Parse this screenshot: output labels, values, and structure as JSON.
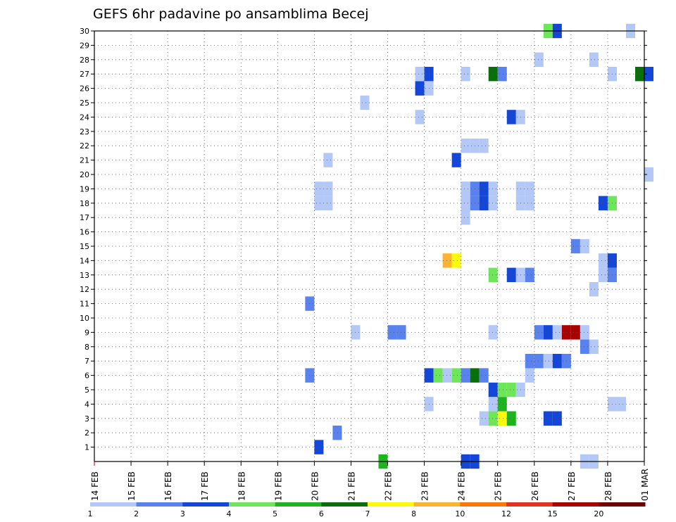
{
  "chart_data": {
    "type": "heatmap",
    "title": "GEFS 6hr padavine po ansamblima Becej",
    "xlabel": "",
    "ylabel": "",
    "x_axis": {
      "start": "14 FEB 00Z",
      "end": "01 MAR 00Z",
      "step_hours": 6,
      "tick_labels": [
        "14 FEB",
        "15 FEB",
        "16 FEB",
        "17 FEB",
        "18 FEB",
        "19 FEB",
        "20 FEB",
        "21 FEB",
        "22 FEB",
        "23 FEB",
        "24 FEB",
        "25 FEB",
        "26 FEB",
        "27 FEB",
        "28 FEB",
        "01 MAR"
      ]
    },
    "y_axis": {
      "ylim": [
        0,
        30
      ],
      "tick_labels": [
        "1",
        "2",
        "3",
        "4",
        "5",
        "6",
        "7",
        "8",
        "9",
        "10",
        "11",
        "12",
        "13",
        "14",
        "15",
        "16",
        "17",
        "18",
        "19",
        "20",
        "21",
        "22",
        "23",
        "24",
        "25",
        "26",
        "27",
        "28",
        "29",
        "30"
      ]
    },
    "grid": true,
    "legend": {
      "placement": "bottom",
      "tick_labels": [
        "1",
        "2",
        "3",
        "4",
        "5",
        "6",
        "7",
        "8",
        "10",
        "12",
        "15",
        "20"
      ],
      "colors": [
        "#b4c8f8",
        "#5a82ee",
        "#1446d8",
        "#6ee65a",
        "#1eb41e",
        "#0a6e0a",
        "#fafa0a",
        "#fab432",
        "#fa780a",
        "#e6321e",
        "#aa0000",
        "#6e0000"
      ]
    },
    "level_colors": [
      "#b4c8f8",
      "#5a82ee",
      "#1446d8",
      "#6ee65a",
      "#1eb41e",
      "#0a6e0a",
      "#fafa0a",
      "#fab432",
      "#fa780a",
      "#e6321e",
      "#aa0000",
      "#6e0000"
    ],
    "cells_note_format": "[timestep_index (6h steps from 14 FEB 00Z), member (0-30), level_index (0-11)]",
    "cells": [
      [
        24,
        1,
        2
      ],
      [
        23,
        6,
        1
      ],
      [
        23,
        11,
        1
      ],
      [
        24,
        18,
        0
      ],
      [
        24,
        19,
        0
      ],
      [
        25,
        18,
        0
      ],
      [
        25,
        19,
        0
      ],
      [
        25,
        21,
        0
      ],
      [
        26,
        2,
        1
      ],
      [
        28,
        9,
        0
      ],
      [
        29,
        25,
        0
      ],
      [
        31,
        0,
        4
      ],
      [
        32,
        9,
        1
      ],
      [
        33,
        9,
        1
      ],
      [
        36,
        4,
        0
      ],
      [
        36,
        6,
        2
      ],
      [
        37,
        6,
        3
      ],
      [
        38,
        6,
        0
      ],
      [
        39,
        6,
        3
      ],
      [
        40,
        6,
        1
      ],
      [
        41,
        6,
        5
      ],
      [
        42,
        6,
        1
      ],
      [
        35,
        24,
        0
      ],
      [
        35,
        26,
        2
      ],
      [
        35,
        27,
        0
      ],
      [
        36,
        27,
        2
      ],
      [
        36,
        26,
        0
      ],
      [
        39,
        21,
        2
      ],
      [
        40,
        27,
        0
      ],
      [
        40,
        18,
        0
      ],
      [
        40,
        19,
        0
      ],
      [
        41,
        18,
        1
      ],
      [
        41,
        19,
        1
      ],
      [
        42,
        18,
        2
      ],
      [
        42,
        19,
        2
      ],
      [
        43,
        18,
        0
      ],
      [
        43,
        19,
        0
      ],
      [
        38,
        14,
        7
      ],
      [
        39,
        14,
        6
      ],
      [
        40,
        0,
        2
      ],
      [
        41,
        0,
        2
      ],
      [
        40,
        18,
        0
      ],
      [
        40,
        19,
        0
      ],
      [
        40,
        22,
        0
      ],
      [
        41,
        22,
        0
      ],
      [
        42,
        22,
        0
      ],
      [
        40,
        17,
        0
      ],
      [
        42,
        3,
        0
      ],
      [
        43,
        3,
        3
      ],
      [
        44,
        3,
        6
      ],
      [
        45,
        3,
        4
      ],
      [
        43,
        4,
        0
      ],
      [
        44,
        4,
        4
      ],
      [
        43,
        5,
        2
      ],
      [
        44,
        5,
        3
      ],
      [
        45,
        5,
        3
      ],
      [
        46,
        5,
        0
      ],
      [
        43,
        9,
        0
      ],
      [
        43,
        13,
        3
      ],
      [
        43,
        27,
        5
      ],
      [
        44,
        27,
        1
      ],
      [
        45,
        13,
        2
      ],
      [
        46,
        13,
        0
      ],
      [
        47,
        13,
        1
      ],
      [
        45,
        24,
        2
      ],
      [
        46,
        24,
        0
      ],
      [
        46,
        18,
        0
      ],
      [
        46,
        19,
        0
      ],
      [
        47,
        18,
        0
      ],
      [
        47,
        19,
        0
      ],
      [
        47,
        6,
        0
      ],
      [
        47,
        7,
        1
      ],
      [
        48,
        7,
        1
      ],
      [
        49,
        7,
        0
      ],
      [
        50,
        7,
        2
      ],
      [
        51,
        7,
        1
      ],
      [
        48,
        9,
        1
      ],
      [
        49,
        9,
        2
      ],
      [
        50,
        9,
        0
      ],
      [
        51,
        9,
        10
      ],
      [
        52,
        9,
        10
      ],
      [
        53,
        9,
        0
      ],
      [
        48,
        28,
        0
      ],
      [
        49,
        30,
        3
      ],
      [
        50,
        30,
        2
      ],
      [
        49,
        3,
        2
      ],
      [
        50,
        3,
        2
      ],
      [
        52,
        15,
        1
      ],
      [
        53,
        15,
        0
      ],
      [
        53,
        8,
        1
      ],
      [
        54,
        8,
        0
      ],
      [
        54,
        12,
        0
      ],
      [
        54,
        28,
        0
      ],
      [
        53,
        0,
        0
      ],
      [
        54,
        0,
        0
      ],
      [
        55,
        14,
        0
      ],
      [
        56,
        14,
        2
      ],
      [
        55,
        13,
        0
      ],
      [
        56,
        13,
        1
      ],
      [
        55,
        18,
        2
      ],
      [
        56,
        18,
        3
      ],
      [
        56,
        4,
        0
      ],
      [
        57,
        4,
        0
      ],
      [
        56,
        27,
        0
      ],
      [
        58,
        30,
        0
      ],
      [
        59,
        27,
        5
      ],
      [
        60,
        27,
        2
      ],
      [
        60,
        20,
        0
      ]
    ]
  }
}
